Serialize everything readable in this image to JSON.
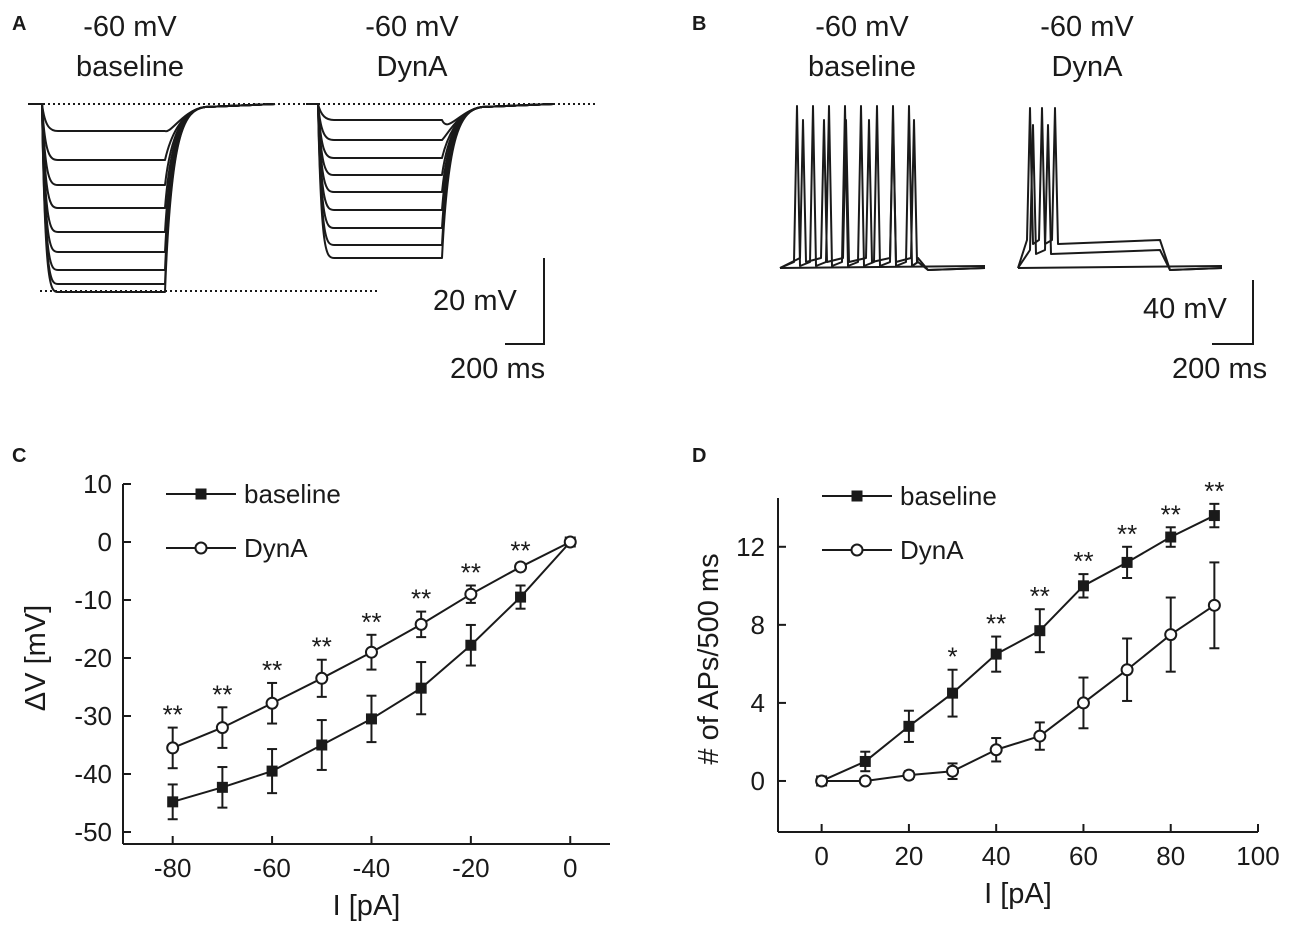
{
  "panelA": {
    "letter": "A",
    "traces": [
      {
        "line1": "-60 mV",
        "line2": "baseline"
      },
      {
        "line1": "-60 mV",
        "line2": "DynA"
      }
    ],
    "scale": {
      "voltage": "20 mV",
      "time": "200 ms"
    }
  },
  "panelB": {
    "letter": "B",
    "traces": [
      {
        "line1": "-60 mV",
        "line2": "baseline"
      },
      {
        "line1": "-60 mV",
        "line2": "DynA"
      }
    ],
    "scale": {
      "voltage": "40 mV",
      "time": "200 ms"
    }
  },
  "chart_data": [
    {
      "panel": "C",
      "type": "line",
      "title": "",
      "xlabel": "I [pA]",
      "ylabel": "ΔV [mV]",
      "xlim": [
        -90,
        8
      ],
      "ylim": [
        -50,
        10
      ],
      "xticks": [
        -80,
        -60,
        -40,
        -20,
        0
      ],
      "yticks": [
        10,
        0,
        -10,
        -20,
        -30,
        -40,
        -50
      ],
      "legend_position": "top-left",
      "x": [
        -80,
        -70,
        -60,
        -50,
        -40,
        -30,
        -20,
        -10,
        0
      ],
      "series": [
        {
          "name": "baseline",
          "marker": "filled-square",
          "values": [
            -44.8,
            -42.3,
            -39.5,
            -35,
            -30.5,
            -25.2,
            -17.8,
            -9.5,
            0
          ],
          "errors": [
            3,
            3.5,
            3.8,
            4.3,
            4,
            4.5,
            3.5,
            2,
            0
          ]
        },
        {
          "name": "DynA",
          "marker": "open-circle",
          "values": [
            -35.5,
            -32,
            -27.8,
            -23.5,
            -19,
            -14.2,
            -9,
            -4.3,
            0
          ],
          "errors": [
            3.5,
            3.5,
            3.5,
            3.2,
            3,
            2.2,
            1.5,
            0.6,
            0
          ]
        }
      ],
      "annotations": [
        {
          "x": -80,
          "text": "**"
        },
        {
          "x": -70,
          "text": "**"
        },
        {
          "x": -60,
          "text": "**"
        },
        {
          "x": -50,
          "text": "**"
        },
        {
          "x": -40,
          "text": "**"
        },
        {
          "x": -30,
          "text": "**"
        },
        {
          "x": -20,
          "text": "**"
        },
        {
          "x": -10,
          "text": "**"
        }
      ]
    },
    {
      "panel": "D",
      "type": "line",
      "title": "",
      "xlabel": "I [pA]",
      "ylabel": "# of APs/500 ms",
      "xlim": [
        -10,
        100
      ],
      "ylim": [
        -2,
        14.5
      ],
      "xticks": [
        0,
        20,
        40,
        60,
        80,
        100
      ],
      "yticks": [
        0,
        4,
        8,
        12
      ],
      "legend_position": "top-left",
      "x": [
        0,
        10,
        20,
        30,
        40,
        50,
        60,
        70,
        80,
        90
      ],
      "series": [
        {
          "name": "baseline",
          "marker": "filled-square",
          "values": [
            0,
            1,
            2.8,
            4.5,
            6.5,
            7.7,
            10,
            11.2,
            12.5,
            13.6
          ],
          "errors": [
            0,
            0.5,
            0.8,
            1.2,
            0.9,
            1.1,
            0.6,
            0.8,
            0.5,
            0.6
          ]
        },
        {
          "name": "DynA",
          "marker": "open-circle",
          "values": [
            0,
            0,
            0.3,
            0.5,
            1.6,
            2.3,
            4,
            5.7,
            7.5,
            9
          ],
          "errors": [
            0,
            0,
            0.2,
            0.4,
            0.6,
            0.7,
            1.3,
            1.6,
            1.9,
            2.2
          ]
        }
      ],
      "annotations": [
        {
          "x": 30,
          "text": "*"
        },
        {
          "x": 40,
          "text": "**"
        },
        {
          "x": 50,
          "text": "**"
        },
        {
          "x": 60,
          "text": "**"
        },
        {
          "x": 70,
          "text": "**"
        },
        {
          "x": 80,
          "text": "**"
        },
        {
          "x": 90,
          "text": "**"
        }
      ]
    }
  ]
}
